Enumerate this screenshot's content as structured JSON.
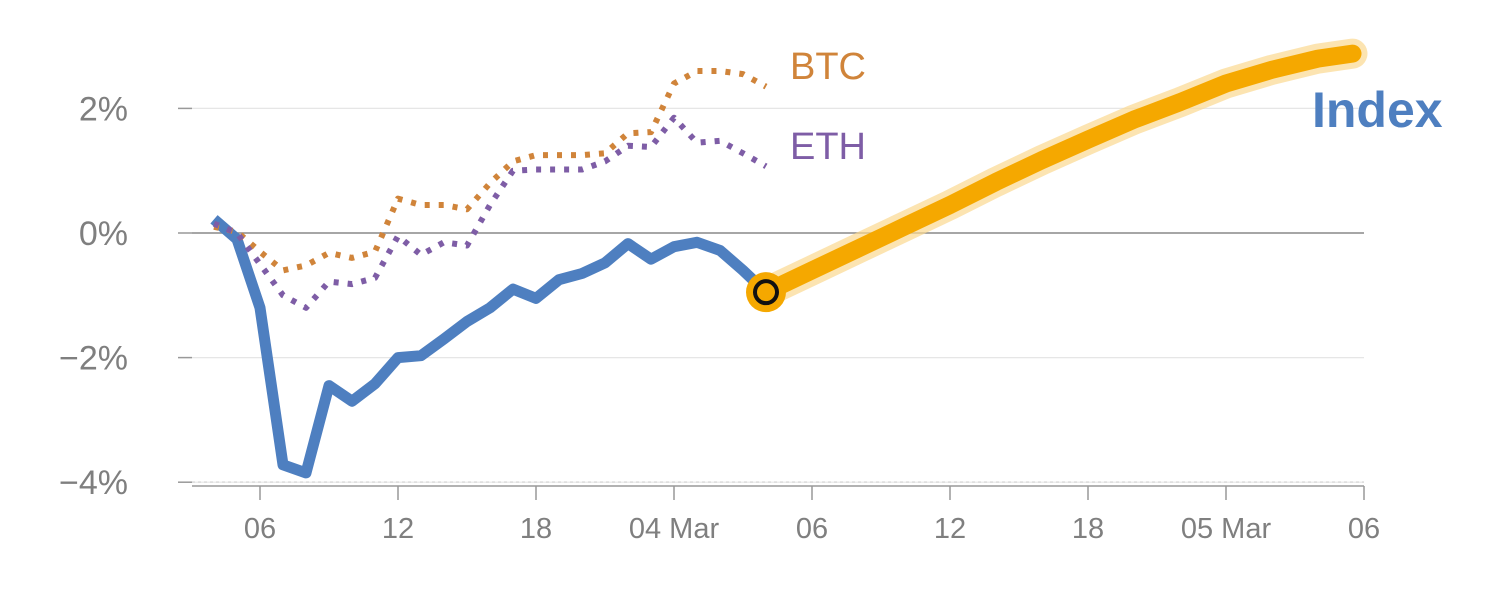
{
  "chart_data": {
    "type": "line",
    "y_unit": "%",
    "ylim": [
      -4.1,
      3.0
    ],
    "y_ticks": [
      {
        "value": 2,
        "label": "2%"
      },
      {
        "value": 0,
        "label": "0%"
      },
      {
        "value": -2,
        "label": "−2%"
      },
      {
        "value": -4,
        "label": "−4%"
      }
    ],
    "x_ticks": [
      {
        "hour": 6,
        "label": "06"
      },
      {
        "hour": 12,
        "label": "12"
      },
      {
        "hour": 18,
        "label": "18"
      },
      {
        "hour": 24,
        "label": "04 Mar"
      },
      {
        "hour": 30,
        "label": "06"
      },
      {
        "hour": 36,
        "label": "12"
      },
      {
        "hour": 42,
        "label": "18"
      },
      {
        "hour": 48,
        "label": "05 Mar"
      },
      {
        "hour": 54,
        "label": "06"
      }
    ],
    "xlim": [
      3.4,
      54
    ],
    "grid": true,
    "series": [
      {
        "name": "Index",
        "color": "#4e7fc0",
        "style": "solid",
        "points": [
          [
            4,
            0.22
          ],
          [
            5,
            -0.1
          ],
          [
            6,
            -1.2
          ],
          [
            7,
            -3.72
          ],
          [
            8,
            -3.85
          ],
          [
            9,
            -2.45
          ],
          [
            10,
            -2.7
          ],
          [
            11,
            -2.42
          ],
          [
            12,
            -2.0
          ],
          [
            13,
            -1.97
          ],
          [
            14,
            -1.7
          ],
          [
            15,
            -1.42
          ],
          [
            16,
            -1.2
          ],
          [
            17,
            -0.9
          ],
          [
            18,
            -1.05
          ],
          [
            19,
            -0.75
          ],
          [
            20,
            -0.65
          ],
          [
            21,
            -0.48
          ],
          [
            22,
            -0.17
          ],
          [
            23,
            -0.42
          ],
          [
            24,
            -0.22
          ],
          [
            25,
            -0.15
          ],
          [
            26,
            -0.28
          ],
          [
            27,
            -0.6
          ],
          [
            28,
            -0.95
          ]
        ]
      },
      {
        "name": "BTC",
        "color": "#d0843a",
        "style": "dotted",
        "points": [
          [
            4,
            0.1
          ],
          [
            5,
            0.02
          ],
          [
            6,
            -0.3
          ],
          [
            7,
            -0.6
          ],
          [
            8,
            -0.52
          ],
          [
            9,
            -0.32
          ],
          [
            10,
            -0.4
          ],
          [
            11,
            -0.3
          ],
          [
            12,
            0.55
          ],
          [
            13,
            0.45
          ],
          [
            14,
            0.45
          ],
          [
            15,
            0.38
          ],
          [
            16,
            0.8
          ],
          [
            17,
            1.15
          ],
          [
            18,
            1.25
          ],
          [
            19,
            1.25
          ],
          [
            20,
            1.25
          ],
          [
            21,
            1.28
          ],
          [
            22,
            1.6
          ],
          [
            23,
            1.62
          ],
          [
            24,
            2.4
          ],
          [
            25,
            2.6
          ],
          [
            26,
            2.6
          ],
          [
            27,
            2.55
          ],
          [
            28,
            2.35
          ]
        ]
      },
      {
        "name": "ETH",
        "color": "#7e5da6",
        "style": "dotted",
        "points": [
          [
            4,
            0.15
          ],
          [
            5,
            0.0
          ],
          [
            6,
            -0.5
          ],
          [
            7,
            -1.0
          ],
          [
            8,
            -1.2
          ],
          [
            9,
            -0.78
          ],
          [
            10,
            -0.82
          ],
          [
            11,
            -0.72
          ],
          [
            12,
            -0.05
          ],
          [
            13,
            -0.35
          ],
          [
            14,
            -0.15
          ],
          [
            15,
            -0.2
          ],
          [
            16,
            0.45
          ],
          [
            17,
            1.0
          ],
          [
            18,
            1.02
          ],
          [
            19,
            1.02
          ],
          [
            20,
            1.02
          ],
          [
            21,
            1.15
          ],
          [
            22,
            1.4
          ],
          [
            23,
            1.38
          ],
          [
            24,
            1.85
          ],
          [
            25,
            1.45
          ],
          [
            26,
            1.48
          ],
          [
            27,
            1.28
          ],
          [
            28,
            1.07
          ]
        ]
      },
      {
        "name": "",
        "color": "#f5a800",
        "style": "thick",
        "points": [
          [
            28,
            -0.95
          ],
          [
            30,
            -0.6
          ],
          [
            32,
            -0.25
          ],
          [
            34,
            0.1
          ],
          [
            36,
            0.45
          ],
          [
            38,
            0.82
          ],
          [
            40,
            1.17
          ],
          [
            42,
            1.5
          ],
          [
            44,
            1.82
          ],
          [
            46,
            2.1
          ],
          [
            48,
            2.4
          ],
          [
            50,
            2.62
          ],
          [
            52,
            2.8
          ],
          [
            53.5,
            2.88
          ]
        ]
      }
    ],
    "marker": {
      "hour": 28,
      "value": -0.95
    },
    "labels": {
      "btc": "BTC",
      "eth": "ETH",
      "index": "Index"
    },
    "colors": {
      "axis": "#999999",
      "grid": "#e6e6e6",
      "zero": "#888888",
      "tick_text": "#7f7f7f",
      "forecast": "#f5a800",
      "forecast_glow": "#fbd990"
    }
  }
}
